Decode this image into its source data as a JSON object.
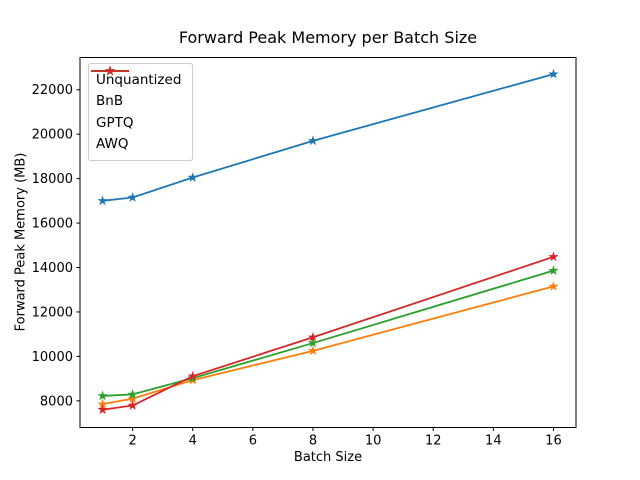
{
  "window": {
    "background": "#ffffff"
  },
  "chart_data": {
    "type": "line",
    "title": "Forward Peak Memory per Batch Size",
    "xlabel": "Batch Size",
    "ylabel": "Forward Peak Memory (MB)",
    "x": [
      1,
      2,
      4,
      8,
      16
    ],
    "series": [
      {
        "name": "Unquantized",
        "color": "#1f77b4",
        "values": [
          17000,
          17150,
          18050,
          19700,
          22700
        ]
      },
      {
        "name": "BnB",
        "color": "#ff7f0e",
        "values": [
          7850,
          8100,
          8930,
          10250,
          13150
        ]
      },
      {
        "name": "GPTQ",
        "color": "#2ca02c",
        "values": [
          8220,
          8290,
          9020,
          10600,
          13860
        ]
      },
      {
        "name": "AWQ",
        "color": "#d62728",
        "values": [
          7600,
          7790,
          9110,
          10860,
          14480
        ]
      }
    ],
    "marker": "star",
    "xticks": [
      2,
      4,
      6,
      8,
      10,
      12,
      14,
      16
    ],
    "yticks": [
      8000,
      10000,
      12000,
      14000,
      16000,
      18000,
      20000,
      22000
    ],
    "xlim": [
      0.25,
      16.75
    ],
    "ylim": [
      6800,
      23450
    ],
    "grid": false,
    "legend": {
      "position": "upper-left",
      "labels": [
        "Unquantized",
        "BnB",
        "GPTQ",
        "AWQ"
      ]
    },
    "frame_color": "#000000",
    "tick_color": "#000000",
    "plot_background": "#ffffff"
  }
}
